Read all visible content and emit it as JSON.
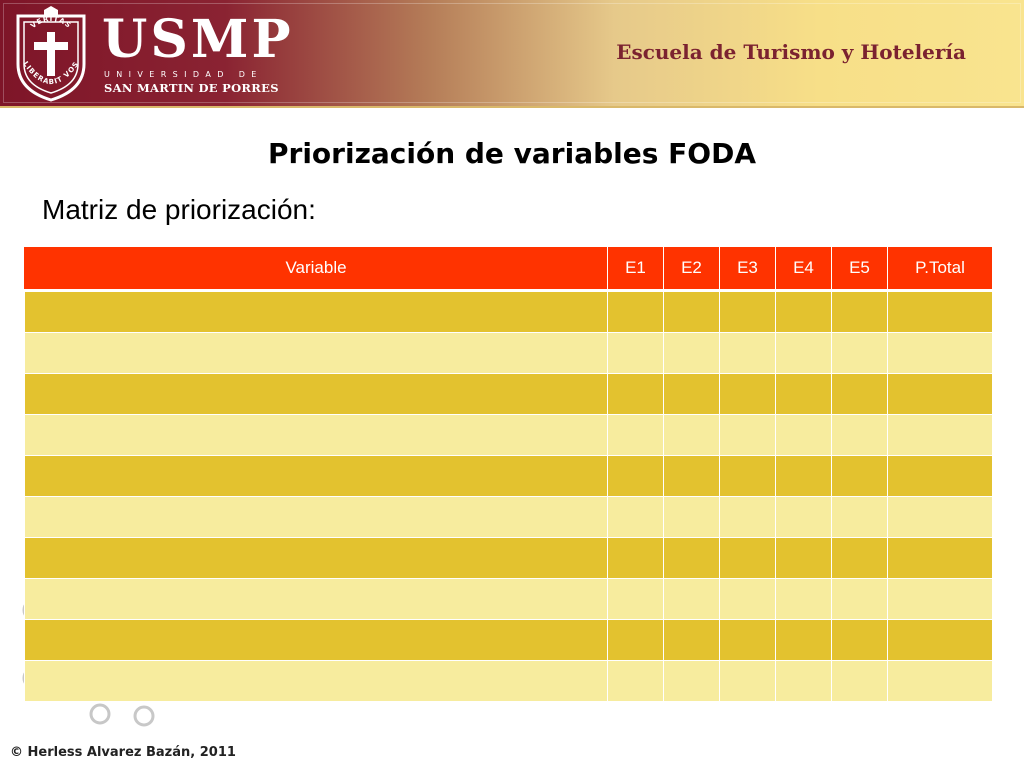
{
  "header": {
    "logo_text": "USMP",
    "logo_sub1": "UNIVERSIDAD DE",
    "logo_sub2": "SAN MARTIN DE PORRES",
    "crest_top_text": "VERITAS",
    "crest_bottom_text": "LIBERABIT VOS",
    "school_name": "Escuela de Turismo y Hotelería",
    "colors": {
      "maroon": "#7e1528",
      "gold": "#f9e48f"
    }
  },
  "slide": {
    "title": "Priorización de variables FODA",
    "subtitle": "Matriz de priorización:"
  },
  "table": {
    "columns": [
      "Variable",
      "E1",
      "E2",
      "E3",
      "E4",
      "E5",
      "P.Total"
    ],
    "rows": [
      [
        "",
        "",
        "",
        "",
        "",
        "",
        ""
      ],
      [
        "",
        "",
        "",
        "",
        "",
        "",
        ""
      ],
      [
        "",
        "",
        "",
        "",
        "",
        "",
        ""
      ],
      [
        "",
        "",
        "",
        "",
        "",
        "",
        ""
      ],
      [
        "",
        "",
        "",
        "",
        "",
        "",
        ""
      ],
      [
        "",
        "",
        "",
        "",
        "",
        "",
        ""
      ],
      [
        "",
        "",
        "",
        "",
        "",
        "",
        ""
      ],
      [
        "",
        "",
        "",
        "",
        "",
        "",
        ""
      ],
      [
        "",
        "",
        "",
        "",
        "",
        "",
        ""
      ],
      [
        "",
        "",
        "",
        "",
        "",
        "",
        ""
      ]
    ],
    "colors": {
      "header": "#ff3300",
      "row_dark": "#e3c22f",
      "row_light": "#f7ec9e"
    }
  },
  "footer": {
    "copyright": "© Herless Alvarez Bazán, 2011"
  }
}
